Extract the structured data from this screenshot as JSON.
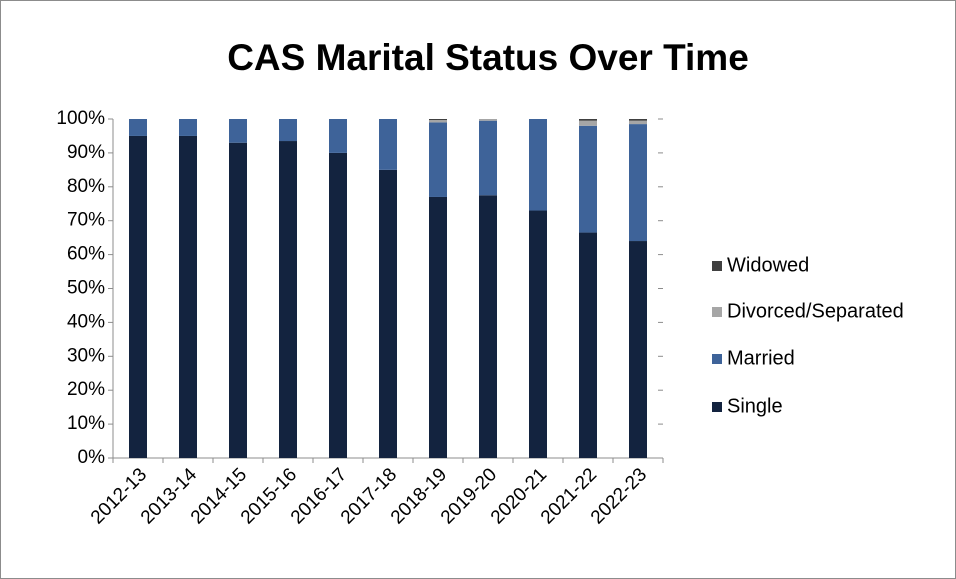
{
  "chart_data": {
    "type": "stacked_bar",
    "title": "CAS Marital Status Over Time",
    "categories": [
      "2012-13",
      "2013-14",
      "2014-15",
      "2015-16",
      "2016-17",
      "2017-18",
      "2018-19",
      "2019-20",
      "2020-21",
      "2021-22",
      "2022-23"
    ],
    "series": [
      {
        "name": "Single",
        "color": "#13233f",
        "values": [
          95,
          95,
          93,
          93.5,
          90,
          85,
          77,
          77.5,
          73,
          66.5,
          64
        ]
      },
      {
        "name": "Married",
        "color": "#3e6399",
        "values": [
          5,
          5,
          7,
          6.5,
          10,
          15,
          22,
          22,
          27,
          31.5,
          34.5
        ]
      },
      {
        "name": "Divorced/Separated",
        "color": "#a6a6a6",
        "values": [
          0,
          0,
          0,
          0,
          0,
          0,
          0.7,
          0.5,
          0,
          1.5,
          1
        ]
      },
      {
        "name": "Widowed",
        "color": "#404040",
        "values": [
          0,
          0,
          0,
          0,
          0,
          0,
          0.3,
          0,
          0,
          0.5,
          0.5
        ]
      }
    ],
    "ylim": [
      0,
      100
    ],
    "yticks": [
      {
        "value": 0,
        "label": "0%"
      },
      {
        "value": 10,
        "label": "10%"
      },
      {
        "value": 20,
        "label": "20%"
      },
      {
        "value": 30,
        "label": "30%"
      },
      {
        "value": 40,
        "label": "40%"
      },
      {
        "value": 50,
        "label": "50%"
      },
      {
        "value": 60,
        "label": "60%"
      },
      {
        "value": 70,
        "label": "70%"
      },
      {
        "value": 80,
        "label": "80%"
      },
      {
        "value": 90,
        "label": "90%"
      },
      {
        "value": 100,
        "label": "100%"
      }
    ],
    "legend": "right"
  }
}
